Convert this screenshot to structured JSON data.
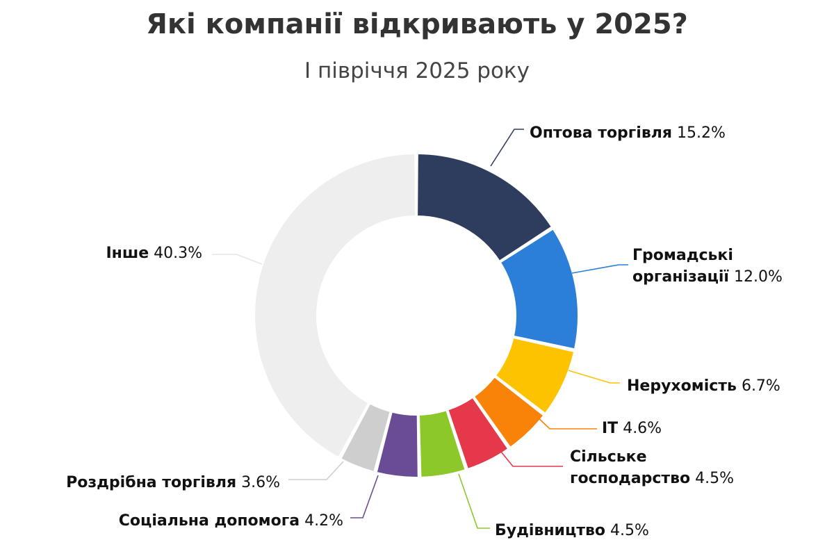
{
  "title": "Які компанії відкривають у 2025?",
  "subtitle": "І півріччя 2025 року",
  "chart_data": {
    "type": "pie",
    "variant": "donut",
    "title": "Які компанії відкривають у 2025?",
    "subtitle": "І півріччя 2025 року",
    "value_format": "percent",
    "slices": [
      {
        "label": "Оптова торгівля",
        "value": 15.2,
        "value_label": "15.2%",
        "color": "#2E3D5E"
      },
      {
        "label": "Громадські організації",
        "lines": [
          "Громадські",
          "організації"
        ],
        "value": 12.0,
        "value_label": "12.0%",
        "color": "#2C7FD8"
      },
      {
        "label": "Нерухомість",
        "value": 6.7,
        "value_label": "6.7%",
        "color": "#FDC300"
      },
      {
        "label": "IT",
        "value": 4.6,
        "value_label": "4.6%",
        "color": "#F98208"
      },
      {
        "label": "Сільське господарство",
        "lines": [
          "Сільське",
          "господарство"
        ],
        "value": 4.5,
        "value_label": "4.5%",
        "color": "#E5384A"
      },
      {
        "label": "Будівництво",
        "value": 4.5,
        "value_label": "4.5%",
        "color": "#8DC82A"
      },
      {
        "label": "Соціальна допомога",
        "value": 4.2,
        "value_label": "4.2%",
        "color": "#6A4C96"
      },
      {
        "label": "Роздрібна торгівля",
        "value": 3.6,
        "value_label": "3.6%",
        "color": "#9A9A9A"
      },
      {
        "label": "Інше",
        "value": 40.3,
        "value_label": "40.3%",
        "color": "#CECECE"
      },
      {
        "label": "",
        "value": 0,
        "value_label": "",
        "color": "#EEEEEE"
      }
    ]
  }
}
